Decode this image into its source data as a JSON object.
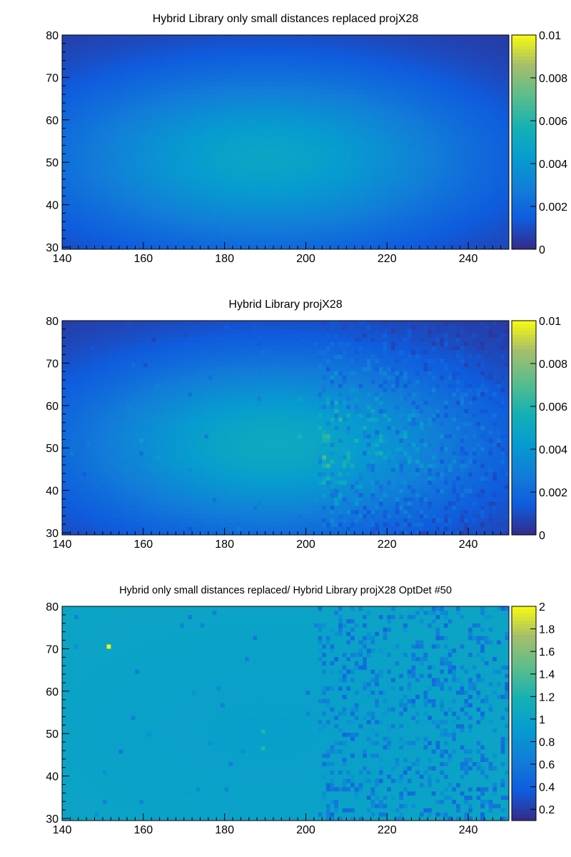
{
  "chart_data": [
    {
      "type": "heatmap",
      "title": "Hybrid Library only small distances replaced projX28",
      "xlim": [
        140,
        250
      ],
      "ylim": [
        29.5,
        80
      ],
      "xticks": [
        "140",
        "160",
        "180",
        "200",
        "220",
        "240"
      ],
      "yticks": [
        "30",
        "40",
        "50",
        "60",
        "70",
        "80"
      ],
      "zlim": [
        0,
        0.01
      ],
      "ztick_labels": [
        "0",
        "0.002",
        "0.004",
        "0.006",
        "0.008",
        "0.01"
      ],
      "zticks_visible": [
        "0",
        "0.002",
        "0.004",
        "0.006",
        "0.008",
        "0.01"
      ],
      "colorscale": "parula",
      "bins": {
        "nx": 110,
        "ny": 51
      },
      "model": {
        "x0": 190,
        "y0": 51,
        "sx": 38,
        "sy": 15,
        "peak": 0.0045,
        "base": 0.0003
      },
      "noise": {
        "start_x": 203,
        "amount": 0
      },
      "outliers": []
    },
    {
      "type": "heatmap",
      "title": "Hybrid Library projX28",
      "xlim": [
        140,
        250
      ],
      "ylim": [
        29.5,
        80
      ],
      "xticks": [
        "140",
        "160",
        "180",
        "200",
        "220",
        "240"
      ],
      "yticks": [
        "30",
        "40",
        "50",
        "60",
        "70",
        "80"
      ],
      "zlim": [
        0,
        0.01
      ],
      "ztick_labels": [
        "0",
        "0.002",
        "0.004",
        "0.006",
        "0.008",
        "0.01"
      ],
      "zticks_visible": [
        "0",
        "0.002",
        "0.004",
        "0.006",
        "0.008",
        "0.01"
      ],
      "colorscale": "parula",
      "bins": {
        "nx": 110,
        "ny": 51
      },
      "model": {
        "x0": 192,
        "y0": 51,
        "sx": 36,
        "sy": 15,
        "peak": 0.0048,
        "base": 0.0003
      },
      "noise": {
        "start_x": 203,
        "amount": 0.35
      },
      "outliers": []
    },
    {
      "type": "heatmap",
      "title": "Hybrid only small distances replaced/ Hybrid Library projX28 OptDet #50",
      "xlim": [
        140,
        250
      ],
      "ylim": [
        29.5,
        80
      ],
      "xticks": [
        "140",
        "160",
        "180",
        "200",
        "220",
        "240"
      ],
      "yticks": [
        "30",
        "40",
        "50",
        "60",
        "70",
        "80"
      ],
      "zlim": [
        0.1,
        2
      ],
      "ztick_labels": [
        "0.2",
        "0.4",
        "0.6",
        "0.8",
        "1",
        "1.2",
        "1.4",
        "1.6",
        "1.8",
        "2"
      ],
      "zticks_visible": [
        "0.2",
        "0.4",
        "0.6",
        "0.8",
        "1",
        "1.2",
        "1.4",
        "1.6",
        "1.8",
        "2"
      ],
      "colorscale": "parula",
      "bins": {
        "nx": 110,
        "ny": 51
      },
      "model": {
        "x0": 190,
        "y0": 51,
        "sx": 40,
        "sy": 20,
        "peak": 0.96,
        "base": 1.03,
        "ratio": true
      },
      "noise": {
        "start_x": 203,
        "amount": 0.25
      },
      "outliers": [
        {
          "x": 151.5,
          "y": 70.5,
          "v": 2.0
        },
        {
          "x": 189.5,
          "y": 50.5,
          "v": 1.25
        },
        {
          "x": 189.5,
          "y": 46.5,
          "v": 1.25
        }
      ]
    }
  ]
}
